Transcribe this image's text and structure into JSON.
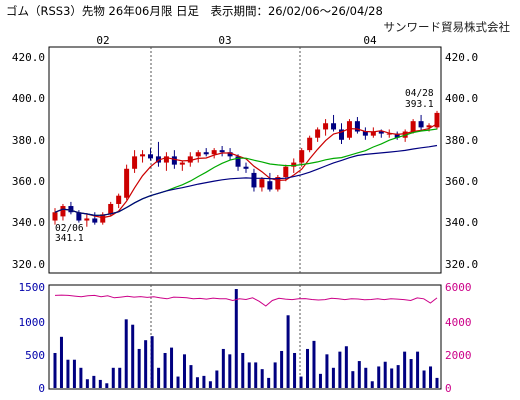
{
  "header": {
    "title": "ゴム（RSS3）先物 26年06月限 日足　表示期間：26/02/06〜26/04/28",
    "source": "サンワード貿易株式会社"
  },
  "chart_data": [
    {
      "type": "candlestick",
      "x_tick_labels": [
        "02",
        "03",
        "04"
      ],
      "y_ticks": [
        "420.0",
        "400.0",
        "380.0",
        "360.0",
        "340.0",
        "320.0"
      ],
      "ylim": [
        320,
        420
      ],
      "grid": "dotted vertical at month boundaries",
      "annotations": [
        {
          "label": "02/06",
          "value": "341.1"
        },
        {
          "label": "04/28",
          "value": "393.1"
        }
      ],
      "colors": {
        "up": "#cc0000",
        "down": "#000080",
        "ma_short": "#cc0000",
        "ma_mid": "#00aa00",
        "ma_long": "#000080"
      },
      "candles": [
        {
          "o": 341,
          "h": 347,
          "l": 339,
          "c": 345
        },
        {
          "o": 343,
          "h": 349,
          "l": 341,
          "c": 348
        },
        {
          "o": 348,
          "h": 350,
          "l": 344,
          "c": 345
        },
        {
          "o": 345,
          "h": 346,
          "l": 340,
          "c": 341
        },
        {
          "o": 341,
          "h": 344,
          "l": 338,
          "c": 342
        },
        {
          "o": 342,
          "h": 345,
          "l": 339,
          "c": 340
        },
        {
          "o": 340,
          "h": 345,
          "l": 339,
          "c": 344
        },
        {
          "o": 344,
          "h": 350,
          "l": 343,
          "c": 349
        },
        {
          "o": 349,
          "h": 354,
          "l": 347,
          "c": 353
        },
        {
          "o": 352,
          "h": 368,
          "l": 351,
          "c": 366
        },
        {
          "o": 366,
          "h": 375,
          "l": 364,
          "c": 372
        },
        {
          "o": 372,
          "h": 375,
          "l": 369,
          "c": 373
        },
        {
          "o": 373,
          "h": 376,
          "l": 370,
          "c": 371
        },
        {
          "o": 372,
          "h": 379,
          "l": 367,
          "c": 369
        },
        {
          "o": 369,
          "h": 374,
          "l": 365,
          "c": 372
        },
        {
          "o": 372,
          "h": 375,
          "l": 366,
          "c": 368
        },
        {
          "o": 368,
          "h": 370,
          "l": 365,
          "c": 369
        },
        {
          "o": 369,
          "h": 374,
          "l": 367,
          "c": 372
        },
        {
          "o": 372,
          "h": 375,
          "l": 369,
          "c": 374
        },
        {
          "o": 374,
          "h": 376,
          "l": 372,
          "c": 373
        },
        {
          "o": 373,
          "h": 376,
          "l": 371,
          "c": 375
        },
        {
          "o": 375,
          "h": 377,
          "l": 372,
          "c": 374
        },
        {
          "o": 374,
          "h": 376,
          "l": 370,
          "c": 372
        },
        {
          "o": 372,
          "h": 373,
          "l": 365,
          "c": 367
        },
        {
          "o": 367,
          "h": 369,
          "l": 364,
          "c": 366
        },
        {
          "o": 364,
          "h": 366,
          "l": 355,
          "c": 357
        },
        {
          "o": 357,
          "h": 362,
          "l": 355,
          "c": 361
        },
        {
          "o": 360,
          "h": 364,
          "l": 355,
          "c": 356
        },
        {
          "o": 356,
          "h": 363,
          "l": 355,
          "c": 362
        },
        {
          "o": 362,
          "h": 368,
          "l": 360,
          "c": 367
        },
        {
          "o": 367,
          "h": 371,
          "l": 364,
          "c": 369
        },
        {
          "o": 369,
          "h": 376,
          "l": 367,
          "c": 375
        },
        {
          "o": 375,
          "h": 382,
          "l": 374,
          "c": 381
        },
        {
          "o": 381,
          "h": 386,
          "l": 379,
          "c": 385
        },
        {
          "o": 385,
          "h": 390,
          "l": 382,
          "c": 388
        },
        {
          "o": 388,
          "h": 392,
          "l": 384,
          "c": 385
        },
        {
          "o": 385,
          "h": 388,
          "l": 378,
          "c": 380
        },
        {
          "o": 381,
          "h": 390,
          "l": 380,
          "c": 389
        },
        {
          "o": 389,
          "h": 391,
          "l": 383,
          "c": 384
        },
        {
          "o": 384,
          "h": 386,
          "l": 380,
          "c": 382
        },
        {
          "o": 382,
          "h": 386,
          "l": 381,
          "c": 384
        },
        {
          "o": 384,
          "h": 385,
          "l": 381,
          "c": 383
        },
        {
          "o": 383,
          "h": 385,
          "l": 381,
          "c": 383
        },
        {
          "o": 383,
          "h": 384,
          "l": 380,
          "c": 381
        },
        {
          "o": 381,
          "h": 385,
          "l": 379,
          "c": 384
        },
        {
          "o": 384,
          "h": 390,
          "l": 383,
          "c": 389
        },
        {
          "o": 389,
          "h": 392,
          "l": 384,
          "c": 386
        },
        {
          "o": 386,
          "h": 388,
          "l": 384,
          "c": 387
        },
        {
          "o": 386,
          "h": 394,
          "l": 385,
          "c": 393
        }
      ]
    },
    {
      "type": "bar",
      "series": [
        {
          "unit": "volume",
          "values": [
            520,
            760,
            420,
            420,
            300,
            130,
            180,
            120,
            70,
            300,
            300,
            1020,
            940,
            580,
            710,
            770,
            300,
            520,
            600,
            170,
            500,
            340,
            160,
            180,
            100,
            260,
            580,
            500,
            1470,
            520,
            380,
            380,
            280,
            150,
            380,
            550,
            1080,
            520,
            170,
            580,
            700,
            210,
            500,
            300,
            540,
            620,
            250,
            400,
            300,
            100,
            320,
            390,
            290,
            340,
            540,
            430,
            540,
            260,
            320,
            150
          ]
        },
        {
          "unit": "open_interest",
          "values": [
            5500,
            5520,
            5500,
            5460,
            5420,
            5480,
            5500,
            5420,
            5480,
            5360,
            5400,
            5450,
            5400,
            5430,
            5380,
            5420,
            5350,
            5300,
            5400,
            5380,
            5360,
            5300,
            5320,
            5280,
            5340,
            5300,
            5300,
            5200,
            5300,
            5260,
            5360,
            5150,
            4870,
            5200,
            5330,
            5280,
            5250,
            5300,
            5310,
            5260,
            5230,
            5250,
            5330,
            5300,
            5250,
            5300,
            5290,
            5240,
            5260,
            5300,
            5250,
            5300,
            5280,
            5250,
            5200,
            5350,
            5300,
            5050,
            5350
          ]
        }
      ],
      "left_ticks": [
        "1500",
        "1000",
        "500",
        "0"
      ],
      "right_ticks": [
        "6000",
        "4000",
        "2000",
        "0"
      ],
      "left_ylim": [
        0,
        1500
      ],
      "right_ylim": [
        0,
        6000
      ],
      "colors": {
        "volume": "#000080",
        "open_interest": "#cc0088",
        "avg": "#cc00cc",
        "cyan": "#00cccc"
      }
    }
  ]
}
